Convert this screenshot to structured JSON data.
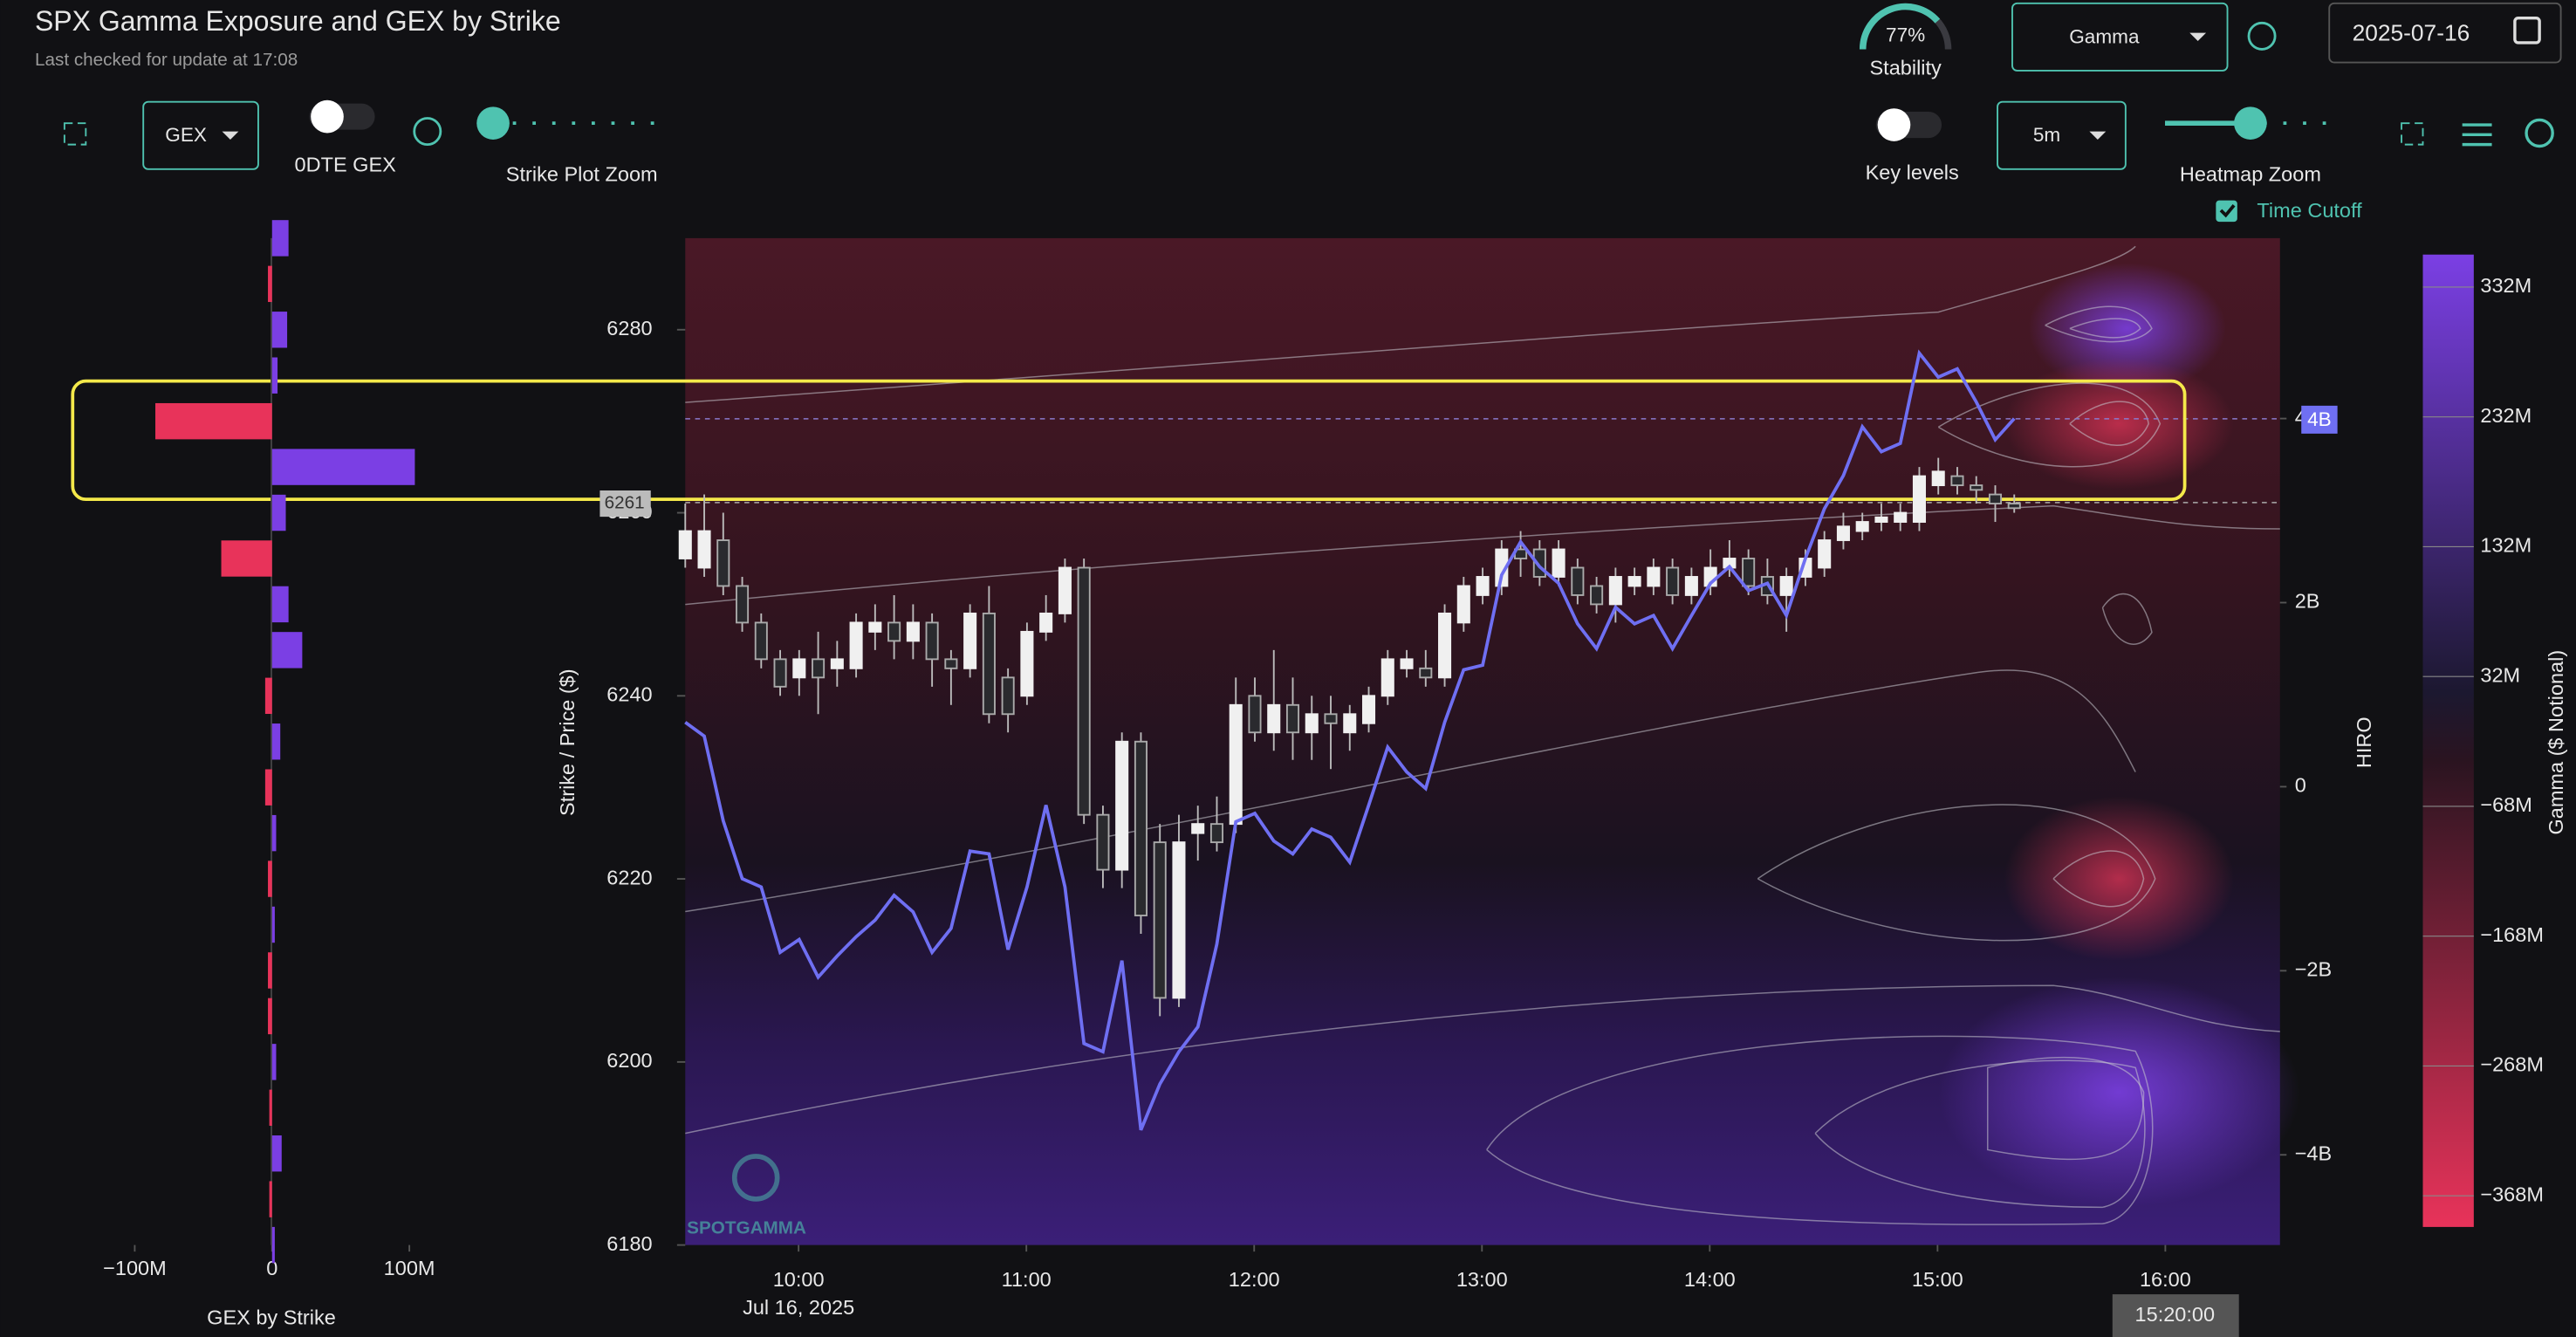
{
  "header": {
    "title": "SPX Gamma Exposure and GEX by Strike",
    "subtitle": "Last checked for update at 17:08",
    "stability": {
      "value": 77,
      "label": "77%",
      "caption": "Stability"
    },
    "metric_select": "Gamma",
    "date": "2025-07-16"
  },
  "controls": {
    "gex_select": "GEX",
    "odte_label": "0DTE GEX",
    "strike_zoom_label": "Strike Plot Zoom",
    "key_levels_label": "Key levels",
    "interval_select": "5m",
    "heatmap_zoom_label": "Heatmap Zoom",
    "time_cutoff_label": "Time Cutoff",
    "watermark": "SPOTGAMMA"
  },
  "chart_data": [
    {
      "type": "hbar",
      "xlabel": "GEX by Strike",
      "strikes": [
        6290,
        6285,
        6280,
        6275,
        6270,
        6265,
        6260,
        6255,
        6250,
        6245,
        6240,
        6235,
        6230,
        6225,
        6220,
        6215,
        6210,
        6205,
        6200,
        6195,
        6190,
        6185,
        6180
      ],
      "values": [
        12,
        -3,
        11,
        4,
        -85,
        104,
        10,
        -37,
        12,
        22,
        -5,
        6,
        -5,
        3,
        -3,
        2,
        -3,
        -3,
        3,
        -2,
        7,
        -2,
        2
      ],
      "colors": {
        "positive": "#7b3fe4",
        "negative": "#e8335a"
      },
      "xlim": [
        -150,
        161
      ],
      "xticks": [
        {
          "value": -100,
          "label": "−100M"
        },
        0,
        {
          "value": 100,
          "label": "100M"
        }
      ]
    },
    {
      "type": "candlestick",
      "ylabel": "Strike / Price ($)",
      "ylim": [
        6180,
        6290
      ],
      "yticks": [
        6180,
        6200,
        6220,
        6240,
        6260,
        6280
      ],
      "xtick_labels": [
        "10:00",
        "11:00",
        "12:00",
        "13:00",
        "14:00",
        "15:00",
        "16:00"
      ],
      "date_label": "Jul 16, 2025",
      "cursor_label": "15:20:00",
      "price_label": 6261,
      "open": [
        6255,
        6254,
        6257,
        6252,
        6248,
        6244,
        6242,
        6244,
        6243,
        6243,
        6247,
        6248,
        6246,
        6248,
        6244,
        6243,
        6249,
        6242,
        6240,
        6247,
        6249,
        6254,
        6227,
        6221,
        6235,
        6224,
        6207,
        6225,
        6226,
        6226,
        6240,
        6236,
        6239,
        6236,
        6238,
        6236,
        6237,
        6240,
        6243,
        6243,
        6242,
        6248,
        6251,
        6252,
        6256,
        6256,
        6253,
        6254,
        6252,
        6250,
        6252,
        6252,
        6254,
        6251,
        6252,
        6254,
        6255,
        6253,
        6251,
        6253,
        6254,
        6257,
        6258,
        6259,
        6259,
        6259,
        6263,
        6264,
        6263,
        6262,
        6261
      ],
      "high": [
        6261,
        6262,
        6260,
        6253,
        6249,
        6245,
        6245,
        6247,
        6246,
        6249,
        6250,
        6251,
        6250,
        6249,
        6245,
        6250,
        6252,
        6243,
        6248,
        6251,
        6255,
        6255,
        6228,
        6236,
        6236,
        6226,
        6227,
        6228,
        6229,
        6242,
        6242,
        6245,
        6242,
        6240,
        6240,
        6239,
        6241,
        6245,
        6245,
        6245,
        6250,
        6253,
        6254,
        6257,
        6258,
        6257,
        6257,
        6255,
        6253,
        6254,
        6254,
        6255,
        6255,
        6254,
        6256,
        6257,
        6256,
        6255,
        6254,
        6256,
        6258,
        6260,
        6260,
        6261,
        6261,
        6265,
        6266,
        6265,
        6264,
        6263,
        6262
      ],
      "low": [
        6254,
        6253,
        6251,
        6247,
        6243,
        6240,
        6240,
        6238,
        6241,
        6242,
        6245,
        6244,
        6244,
        6241,
        6239,
        6242,
        6237,
        6236,
        6239,
        6246,
        6248,
        6226,
        6219,
        6219,
        6214,
        6205,
        6206,
        6222,
        6223,
        6225,
        6235,
        6234,
        6233,
        6233,
        6232,
        6234,
        6236,
        6239,
        6242,
        6241,
        6241,
        6247,
        6250,
        6251,
        6253,
        6252,
        6252,
        6250,
        6249,
        6248,
        6251,
        6251,
        6250,
        6250,
        6251,
        6253,
        6251,
        6250,
        6247,
        6252,
        6253,
        6256,
        6257,
        6258,
        6258,
        6258,
        6262,
        6262,
        6261,
        6259,
        6260
      ],
      "close": [
        6258,
        6258,
        6252,
        6248,
        6244,
        6241,
        6244,
        6242,
        6244,
        6248,
        6248,
        6246,
        6248,
        6244,
        6243,
        6249,
        6238,
        6238,
        6247,
        6249,
        6254,
        6227,
        6221,
        6235,
        6216,
        6207,
        6224,
        6226,
        6224,
        6239,
        6236,
        6239,
        6236,
        6238,
        6237,
        6238,
        6240,
        6244,
        6244,
        6242,
        6249,
        6252,
        6253,
        6256,
        6255,
        6253,
        6256,
        6251,
        6250,
        6253,
        6253,
        6254,
        6251,
        6253,
        6254,
        6255,
        6252,
        6251,
        6253,
        6255,
        6257,
        6258.5,
        6259,
        6259.5,
        6260,
        6264,
        6264.5,
        6263,
        6262.5,
        6261,
        6260.5
      ]
    },
    {
      "type": "line",
      "ylabel": "HIRO",
      "color": "#6f6ff2",
      "ylim": [
        -4.98,
        5.96
      ],
      "yticks": [
        {
          "value": -4,
          "label": "−4B"
        },
        {
          "value": -2,
          "label": "−2B"
        },
        0,
        {
          "value": 2,
          "label": "2B"
        },
        4
      ],
      "values": [
        0.7,
        0.55,
        -0.37,
        -1.0,
        -1.09,
        -1.8,
        -1.66,
        -2.07,
        -1.84,
        -1.63,
        -1.45,
        -1.18,
        -1.36,
        -1.8,
        -1.54,
        -0.7,
        -0.73,
        -1.77,
        -1.09,
        -0.2,
        -1.09,
        -2.79,
        -2.88,
        -1.89,
        -3.73,
        -3.23,
        -2.88,
        -2.61,
        -1.71,
        -0.38,
        -0.29,
        -0.59,
        -0.73,
        -0.46,
        -0.55,
        -0.82,
        -0.2,
        0.43,
        0.16,
        -0.02,
        0.7,
        1.27,
        1.32,
        2.3,
        2.66,
        2.39,
        2.21,
        1.77,
        1.5,
        1.95,
        1.77,
        1.86,
        1.5,
        1.86,
        2.21,
        2.39,
        2.13,
        2.21,
        1.86,
        2.48,
        3.02,
        3.38,
        3.91,
        3.64,
        3.73,
        4.71,
        4.45,
        4.54,
        4.18,
        3.77,
        4.0
      ],
      "last_label": "4B"
    },
    {
      "type": "colorbar",
      "label": "Gamma ($ Notional)",
      "clim": [
        -392,
        357
      ],
      "ticks": [
        {
          "value": 332,
          "label": "332M"
        },
        {
          "value": 232,
          "label": "232M"
        },
        {
          "value": 132,
          "label": "132M"
        },
        {
          "value": 32,
          "label": "32M"
        },
        {
          "value": -68,
          "label": "−68M"
        },
        {
          "value": -168,
          "label": "−168M"
        },
        {
          "value": -268,
          "label": "−268M"
        },
        {
          "value": -368,
          "label": "−368M"
        }
      ]
    }
  ]
}
